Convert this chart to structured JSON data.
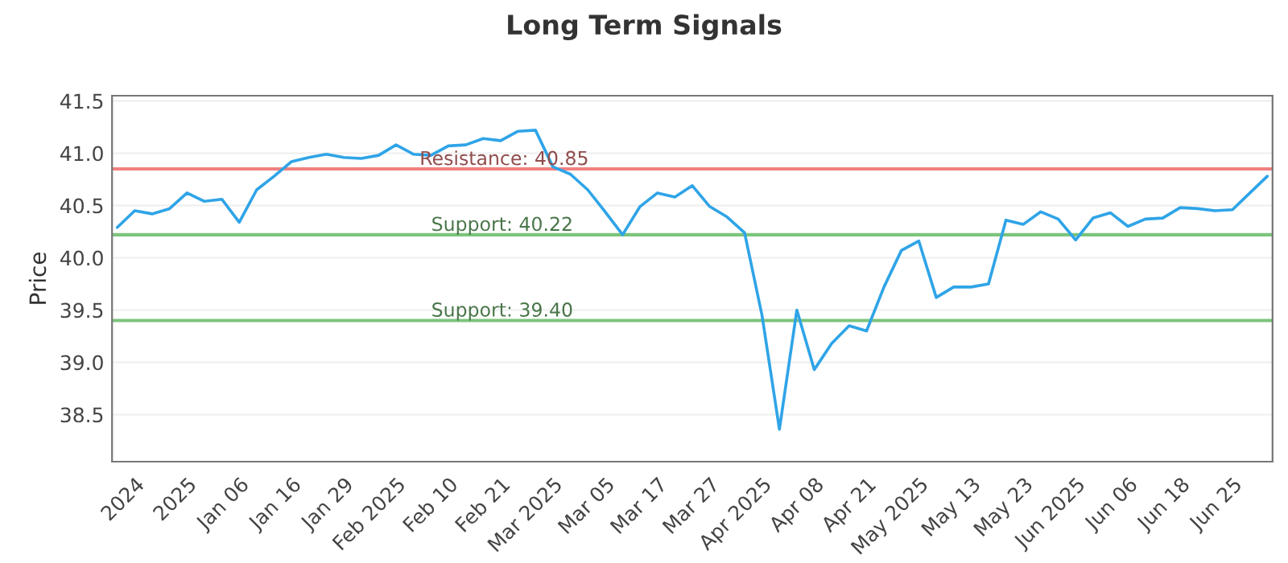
{
  "chart_data": {
    "type": "line",
    "title": "Long Term Signals",
    "ylabel": "Price",
    "categories": [
      null,
      "2024",
      null,
      null,
      "2025",
      null,
      null,
      "Jan 06",
      null,
      null,
      "Jan 16",
      null,
      null,
      "Jan 29",
      null,
      null,
      "Feb 2025",
      null,
      null,
      "Feb 10",
      null,
      null,
      "Feb 21",
      null,
      null,
      "Mar 2025",
      null,
      null,
      "Mar 05",
      null,
      null,
      "Mar 17",
      null,
      null,
      "Mar 27",
      null,
      null,
      "Apr 2025",
      null,
      null,
      "Apr 08",
      null,
      null,
      "Apr 21",
      null,
      null,
      "May 2025",
      null,
      null,
      "May 13",
      null,
      null,
      "May 23",
      null,
      null,
      "Jun 2025",
      null,
      null,
      "Jun 06",
      null,
      null,
      "Jun 18",
      null,
      null,
      "Jun 25",
      null,
      null
    ],
    "series": [
      {
        "color": "#2fa4e7",
        "values": [
          40.29,
          40.45,
          40.42,
          40.47,
          40.62,
          40.54,
          40.56,
          40.34,
          40.65,
          40.78,
          40.92,
          40.96,
          40.99,
          40.96,
          40.95,
          40.98,
          41.08,
          40.99,
          40.98,
          41.07,
          41.08,
          41.14,
          41.12,
          41.21,
          41.22,
          40.87,
          40.8,
          40.65,
          40.44,
          40.22,
          40.49,
          40.62,
          40.58,
          40.69,
          40.49,
          40.39,
          40.24,
          39.45,
          38.36,
          39.5,
          38.93,
          39.18,
          39.35,
          39.3,
          39.72,
          40.07,
          40.16,
          39.62,
          39.72,
          39.72,
          39.75,
          40.36,
          40.32,
          40.44,
          40.37,
          40.17,
          40.38,
          40.43,
          40.3,
          40.37,
          40.38,
          40.48,
          40.47,
          40.45,
          40.46,
          40.62,
          40.78
        ]
      }
    ],
    "ylim": [
      38.05,
      41.55
    ],
    "yticks": [
      38.5,
      {
        "value": 39.0,
        "label": "39.0"
      },
      39.5,
      {
        "value": 40.0,
        "label": "40.0"
      },
      40.5,
      {
        "value": 41.0,
        "label": "41.0"
      },
      41.5
    ],
    "ref_lines": [
      {
        "axis": "y",
        "value": 40.85,
        "label": "Resistance: 40.85",
        "color": "#f08080"
      },
      {
        "axis": "y",
        "value": 40.22,
        "label": "Support: 40.22",
        "color": "#7cc47c"
      },
      {
        "axis": "y",
        "value": 39.4,
        "label": "Support: 39.40",
        "color": "#7cc47c"
      }
    ],
    "grid": "y",
    "legend": false,
    "marker": "none",
    "line_style": "solid"
  }
}
